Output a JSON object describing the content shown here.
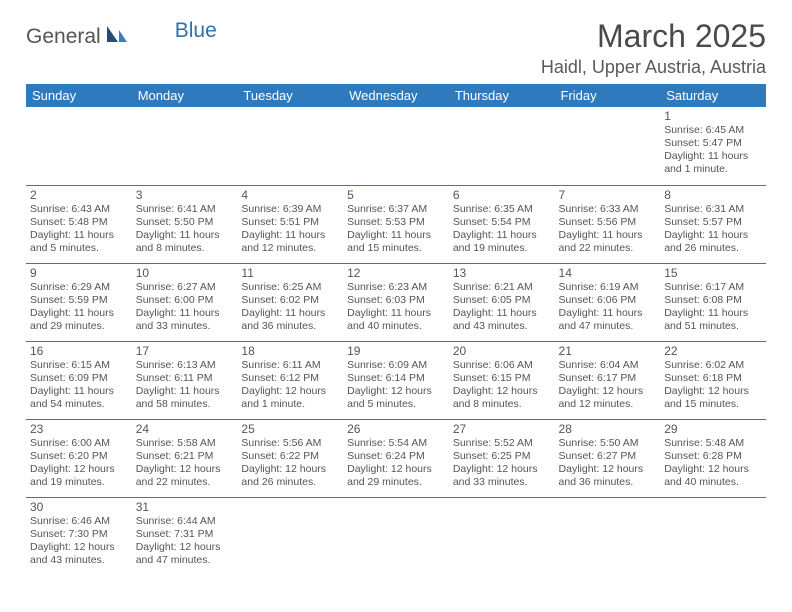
{
  "logo": {
    "text1": "General",
    "text2": "Blue"
  },
  "title": "March 2025",
  "location": "Haidl, Upper Austria, Austria",
  "colors": {
    "header_bg": "#2f79bd",
    "header_fg": "#ffffff",
    "grid_line": "#2f79bd",
    "text": "#555555",
    "logo_blue": "#2f6fb0"
  },
  "day_headers": [
    "Sunday",
    "Monday",
    "Tuesday",
    "Wednesday",
    "Thursday",
    "Friday",
    "Saturday"
  ],
  "weeks": [
    [
      null,
      null,
      null,
      null,
      null,
      null,
      {
        "n": "1",
        "sr": "Sunrise: 6:45 AM",
        "ss": "Sunset: 5:47 PM",
        "dl": "Daylight: 11 hours and 1 minute."
      }
    ],
    [
      {
        "n": "2",
        "sr": "Sunrise: 6:43 AM",
        "ss": "Sunset: 5:48 PM",
        "dl": "Daylight: 11 hours and 5 minutes."
      },
      {
        "n": "3",
        "sr": "Sunrise: 6:41 AM",
        "ss": "Sunset: 5:50 PM",
        "dl": "Daylight: 11 hours and 8 minutes."
      },
      {
        "n": "4",
        "sr": "Sunrise: 6:39 AM",
        "ss": "Sunset: 5:51 PM",
        "dl": "Daylight: 11 hours and 12 minutes."
      },
      {
        "n": "5",
        "sr": "Sunrise: 6:37 AM",
        "ss": "Sunset: 5:53 PM",
        "dl": "Daylight: 11 hours and 15 minutes."
      },
      {
        "n": "6",
        "sr": "Sunrise: 6:35 AM",
        "ss": "Sunset: 5:54 PM",
        "dl": "Daylight: 11 hours and 19 minutes."
      },
      {
        "n": "7",
        "sr": "Sunrise: 6:33 AM",
        "ss": "Sunset: 5:56 PM",
        "dl": "Daylight: 11 hours and 22 minutes."
      },
      {
        "n": "8",
        "sr": "Sunrise: 6:31 AM",
        "ss": "Sunset: 5:57 PM",
        "dl": "Daylight: 11 hours and 26 minutes."
      }
    ],
    [
      {
        "n": "9",
        "sr": "Sunrise: 6:29 AM",
        "ss": "Sunset: 5:59 PM",
        "dl": "Daylight: 11 hours and 29 minutes."
      },
      {
        "n": "10",
        "sr": "Sunrise: 6:27 AM",
        "ss": "Sunset: 6:00 PM",
        "dl": "Daylight: 11 hours and 33 minutes."
      },
      {
        "n": "11",
        "sr": "Sunrise: 6:25 AM",
        "ss": "Sunset: 6:02 PM",
        "dl": "Daylight: 11 hours and 36 minutes."
      },
      {
        "n": "12",
        "sr": "Sunrise: 6:23 AM",
        "ss": "Sunset: 6:03 PM",
        "dl": "Daylight: 11 hours and 40 minutes."
      },
      {
        "n": "13",
        "sr": "Sunrise: 6:21 AM",
        "ss": "Sunset: 6:05 PM",
        "dl": "Daylight: 11 hours and 43 minutes."
      },
      {
        "n": "14",
        "sr": "Sunrise: 6:19 AM",
        "ss": "Sunset: 6:06 PM",
        "dl": "Daylight: 11 hours and 47 minutes."
      },
      {
        "n": "15",
        "sr": "Sunrise: 6:17 AM",
        "ss": "Sunset: 6:08 PM",
        "dl": "Daylight: 11 hours and 51 minutes."
      }
    ],
    [
      {
        "n": "16",
        "sr": "Sunrise: 6:15 AM",
        "ss": "Sunset: 6:09 PM",
        "dl": "Daylight: 11 hours and 54 minutes."
      },
      {
        "n": "17",
        "sr": "Sunrise: 6:13 AM",
        "ss": "Sunset: 6:11 PM",
        "dl": "Daylight: 11 hours and 58 minutes."
      },
      {
        "n": "18",
        "sr": "Sunrise: 6:11 AM",
        "ss": "Sunset: 6:12 PM",
        "dl": "Daylight: 12 hours and 1 minute."
      },
      {
        "n": "19",
        "sr": "Sunrise: 6:09 AM",
        "ss": "Sunset: 6:14 PM",
        "dl": "Daylight: 12 hours and 5 minutes."
      },
      {
        "n": "20",
        "sr": "Sunrise: 6:06 AM",
        "ss": "Sunset: 6:15 PM",
        "dl": "Daylight: 12 hours and 8 minutes."
      },
      {
        "n": "21",
        "sr": "Sunrise: 6:04 AM",
        "ss": "Sunset: 6:17 PM",
        "dl": "Daylight: 12 hours and 12 minutes."
      },
      {
        "n": "22",
        "sr": "Sunrise: 6:02 AM",
        "ss": "Sunset: 6:18 PM",
        "dl": "Daylight: 12 hours and 15 minutes."
      }
    ],
    [
      {
        "n": "23",
        "sr": "Sunrise: 6:00 AM",
        "ss": "Sunset: 6:20 PM",
        "dl": "Daylight: 12 hours and 19 minutes."
      },
      {
        "n": "24",
        "sr": "Sunrise: 5:58 AM",
        "ss": "Sunset: 6:21 PM",
        "dl": "Daylight: 12 hours and 22 minutes."
      },
      {
        "n": "25",
        "sr": "Sunrise: 5:56 AM",
        "ss": "Sunset: 6:22 PM",
        "dl": "Daylight: 12 hours and 26 minutes."
      },
      {
        "n": "26",
        "sr": "Sunrise: 5:54 AM",
        "ss": "Sunset: 6:24 PM",
        "dl": "Daylight: 12 hours and 29 minutes."
      },
      {
        "n": "27",
        "sr": "Sunrise: 5:52 AM",
        "ss": "Sunset: 6:25 PM",
        "dl": "Daylight: 12 hours and 33 minutes."
      },
      {
        "n": "28",
        "sr": "Sunrise: 5:50 AM",
        "ss": "Sunset: 6:27 PM",
        "dl": "Daylight: 12 hours and 36 minutes."
      },
      {
        "n": "29",
        "sr": "Sunrise: 5:48 AM",
        "ss": "Sunset: 6:28 PM",
        "dl": "Daylight: 12 hours and 40 minutes."
      }
    ],
    [
      {
        "n": "30",
        "sr": "Sunrise: 6:46 AM",
        "ss": "Sunset: 7:30 PM",
        "dl": "Daylight: 12 hours and 43 minutes."
      },
      {
        "n": "31",
        "sr": "Sunrise: 6:44 AM",
        "ss": "Sunset: 7:31 PM",
        "dl": "Daylight: 12 hours and 47 minutes."
      },
      null,
      null,
      null,
      null,
      null
    ]
  ]
}
